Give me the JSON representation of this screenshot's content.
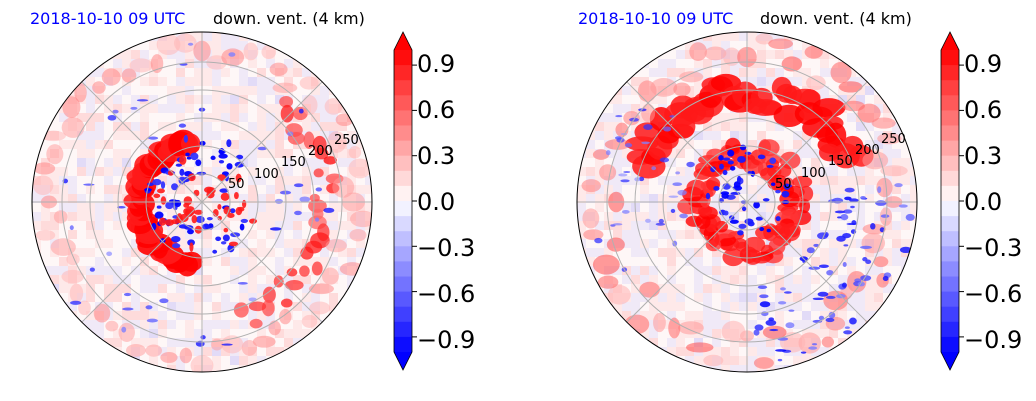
{
  "figure": {
    "panels": [
      {
        "date_label": "2018-10-10 09 UTC",
        "title": "down. vent. (4 km)"
      },
      {
        "date_label": "2018-10-10 09 UTC",
        "title": "down. vent. (4 km)"
      }
    ]
  },
  "chart_data": [
    {
      "type": "heatmap",
      "projection": "polar",
      "title": "down. vent. (4 km)",
      "date_label": "2018-10-10 09 UTC",
      "radial_ticks": [
        50,
        100,
        150,
        200,
        250
      ],
      "colorbar": {
        "ticks": [
          -0.9,
          -0.6,
          -0.3,
          0.0,
          0.3,
          0.6,
          0.9
        ],
        "tick_labels": [
          "−0.9",
          "−0.6",
          "−0.3",
          "0.0",
          "0.3",
          "0.6",
          "0.9"
        ],
        "range": [
          -1.0,
          1.0
        ],
        "colormap": "bwr",
        "extend": "both",
        "low_color": "#0000ff",
        "mid_color": "#ffffff",
        "high_color": "#ff0000"
      }
    },
    {
      "type": "heatmap",
      "projection": "polar",
      "title": "down. vent. (4 km)",
      "date_label": "2018-10-10 09 UTC",
      "radial_ticks": [
        50,
        100,
        150,
        200,
        250
      ],
      "colorbar": {
        "ticks": [
          -0.9,
          -0.6,
          -0.3,
          0.0,
          0.3,
          0.6,
          0.9
        ],
        "tick_labels": [
          "−0.9",
          "−0.6",
          "−0.3",
          "0.0",
          "0.3",
          "0.6",
          "0.9"
        ],
        "range": [
          -1.0,
          1.0
        ],
        "colormap": "bwr",
        "extend": "both",
        "low_color": "#0000ff",
        "mid_color": "#ffffff",
        "high_color": "#ff0000"
      }
    }
  ]
}
